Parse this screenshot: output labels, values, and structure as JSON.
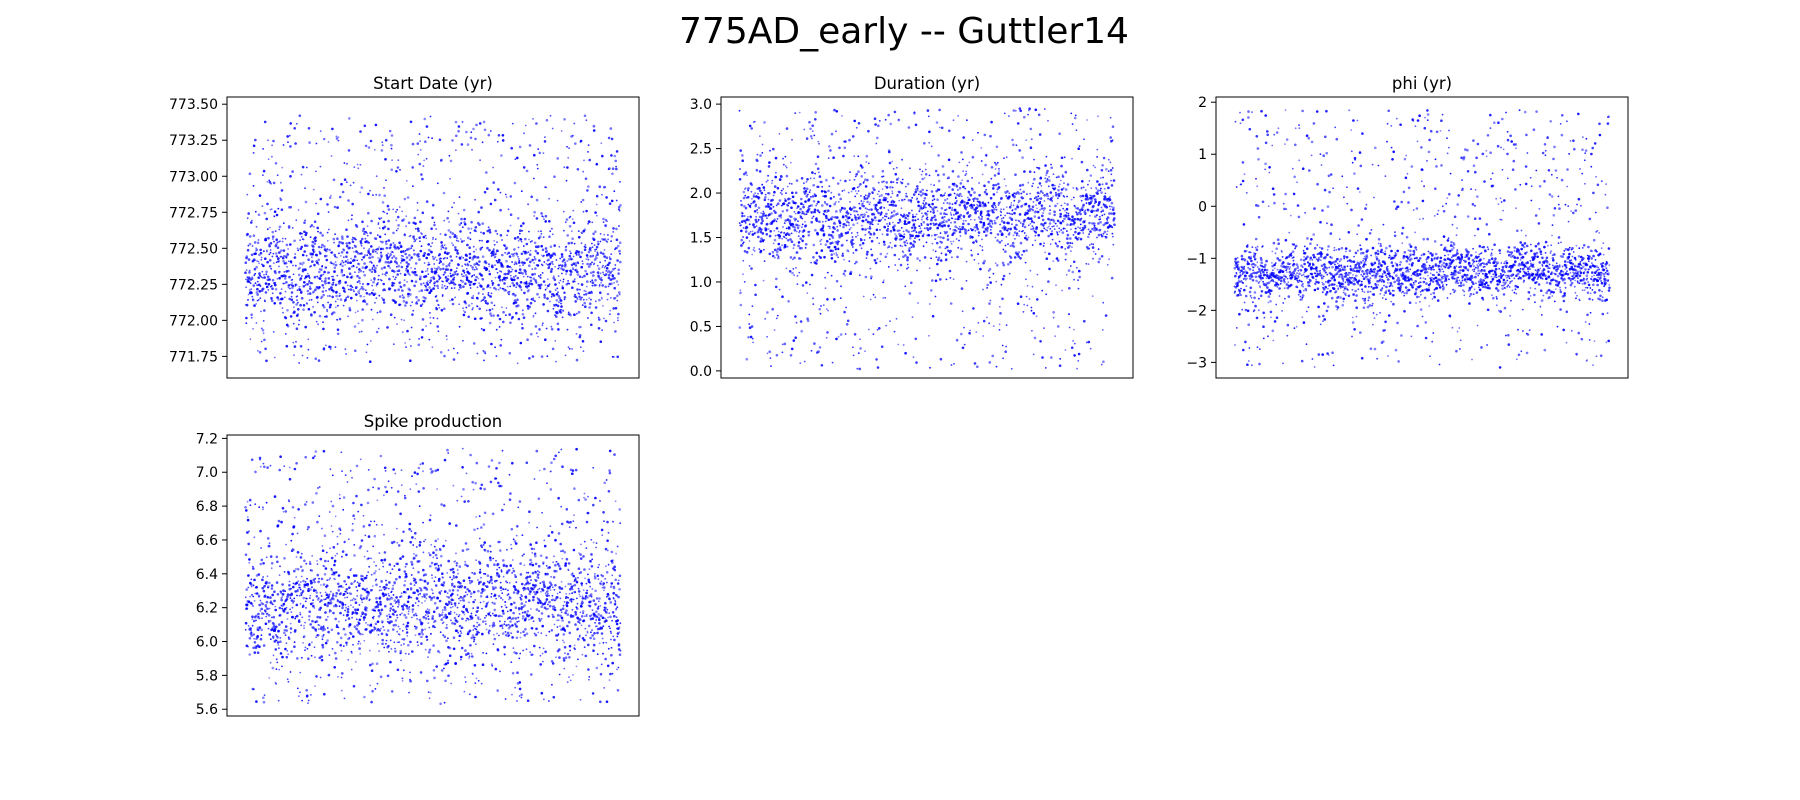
{
  "figure": {
    "title": "775AD_early -- Guttler14"
  },
  "chart_data": [
    {
      "type": "scatter",
      "title": "Start Date (yr)",
      "xlabel": "",
      "ylabel": "",
      "x_ticks_shown": false,
      "x": [
        0,
        7000
      ],
      "ylim": [
        771.6,
        773.55
      ],
      "yticks": [
        771.75,
        772.0,
        772.25,
        772.5,
        772.75,
        773.0,
        773.25,
        773.5
      ],
      "ytick_labels": [
        "771.75",
        "772.00",
        "772.25",
        "772.50",
        "772.75",
        "773.00",
        "773.25",
        "773.50"
      ],
      "color": "#0000ff",
      "n_samples": 7000,
      "dense_band": [
        772.1,
        772.6
      ],
      "min": 771.7,
      "max": 773.42
    },
    {
      "type": "scatter",
      "title": "Duration (yr)",
      "xlabel": "",
      "ylabel": "",
      "x_ticks_shown": false,
      "x": [
        0,
        7000
      ],
      "ylim": [
        -0.08,
        3.08
      ],
      "yticks": [
        0.0,
        0.5,
        1.0,
        1.5,
        2.0,
        2.5,
        3.0
      ],
      "ytick_labels": [
        "0.0",
        "0.5",
        "1.0",
        "1.5",
        "2.0",
        "2.5",
        "3.0"
      ],
      "color": "#0000ff",
      "n_samples": 7000,
      "dense_band": [
        1.4,
        2.1
      ],
      "min": 0.02,
      "max": 2.95
    },
    {
      "type": "scatter",
      "title": "phi (yr)",
      "xlabel": "",
      "ylabel": "",
      "x_ticks_shown": false,
      "x": [
        0,
        7000
      ],
      "ylim": [
        -3.3,
        2.1
      ],
      "yticks": [
        -3,
        -2,
        -1,
        0,
        1,
        2
      ],
      "ytick_labels": [
        "−3",
        "−2",
        "−1",
        "0",
        "1",
        "2"
      ],
      "color": "#0000ff",
      "n_samples": 7000,
      "dense_band": [
        -1.6,
        -0.9
      ],
      "min": -3.1,
      "max": 1.85
    },
    {
      "type": "scatter",
      "title": "Spike production",
      "xlabel": "",
      "ylabel": "",
      "x_ticks_shown": false,
      "x": [
        0,
        7000
      ],
      "ylim": [
        5.56,
        7.22
      ],
      "yticks": [
        5.6,
        5.8,
        6.0,
        6.2,
        6.4,
        6.6,
        6.8,
        7.0,
        7.2
      ],
      "ytick_labels": [
        "5.6",
        "5.8",
        "6.0",
        "6.2",
        "6.4",
        "6.6",
        "6.8",
        "7.0",
        "7.2"
      ],
      "color": "#0000ff",
      "n_samples": 7000,
      "dense_band": [
        6.0,
        6.45
      ],
      "min": 5.63,
      "max": 7.14
    }
  ]
}
